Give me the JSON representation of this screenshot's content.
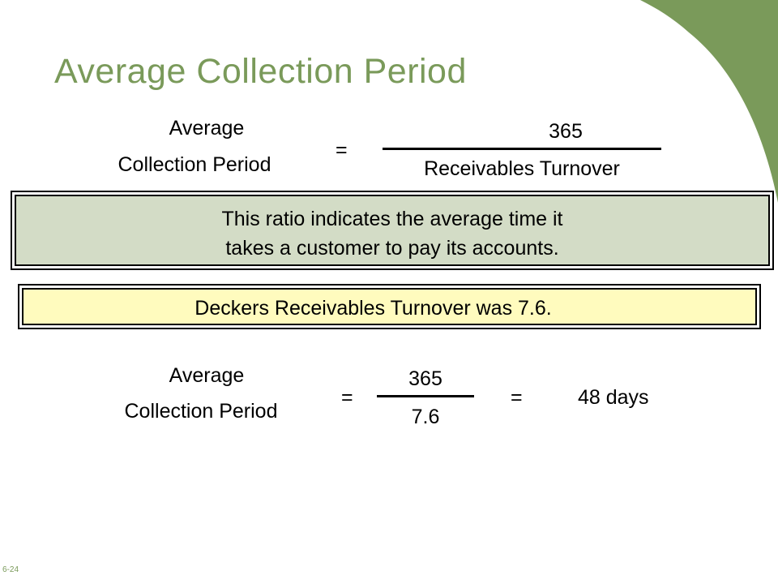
{
  "slide": {
    "title": "Average Collection Period",
    "slide_number": "6-24",
    "accent_color": "#7a9a5a"
  },
  "formula": {
    "lhs_line1": "Average",
    "lhs_line2": "Collection Period",
    "equals": "=",
    "numerator": "365",
    "denominator": "Receivables Turnover"
  },
  "explanation": {
    "line1": "This ratio indicates the average time it",
    "line2": "takes a customer to pay its accounts.",
    "background_color": "#d3dcc6"
  },
  "given": {
    "text": "Deckers Receivables Turnover was 7.6.",
    "background_color": "#fffbbe"
  },
  "calculation": {
    "lhs_line1": "Average",
    "lhs_line2": "Collection Period",
    "equals1": "=",
    "numerator": "365",
    "denominator": "7.6",
    "equals2": "=",
    "result": "48 days"
  }
}
